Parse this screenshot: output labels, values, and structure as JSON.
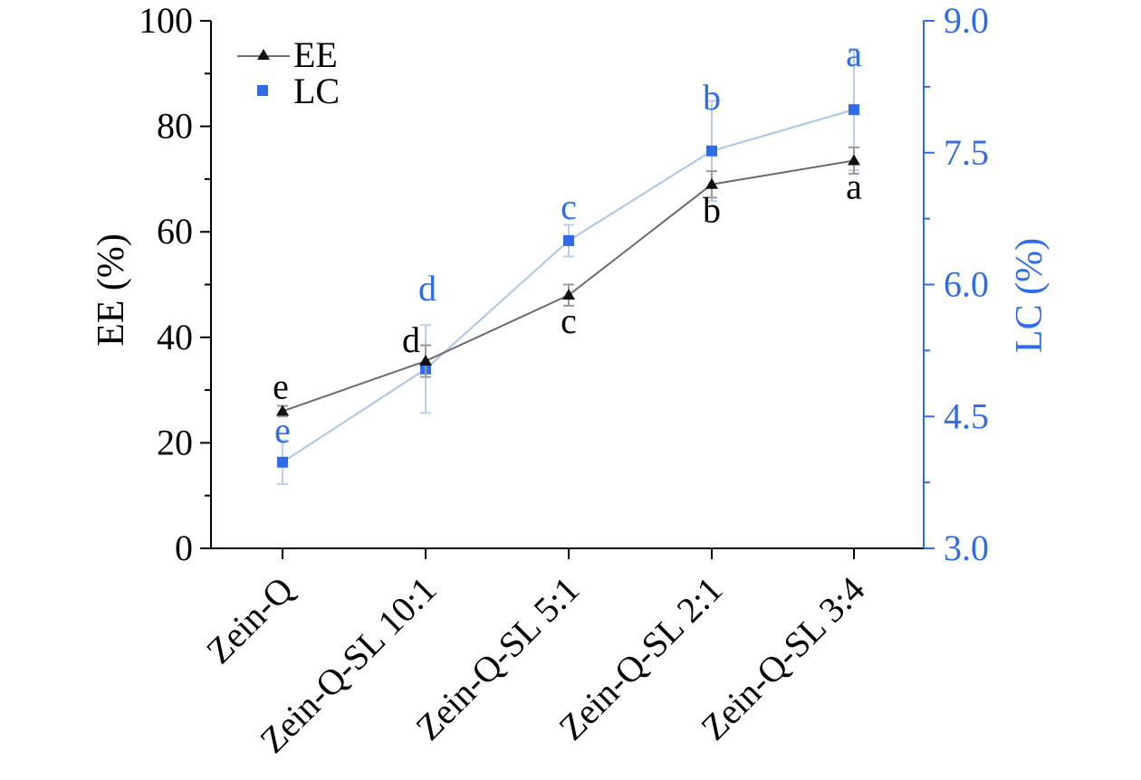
{
  "chart_data": {
    "type": "line",
    "categories": [
      "Zein-Q",
      "Zein-Q-SL 10:1",
      "Zein-Q-SL 5:1",
      "Zein-Q-SL 2:1",
      "Zein-Q-SL 3:4"
    ],
    "ylabel": "EE (%)",
    "ylabel_right": "LC (%)",
    "ylim": [
      0,
      100
    ],
    "ylim_right": [
      3.0,
      9.0
    ],
    "yticks": [
      "0",
      "20",
      "40",
      "60",
      "80",
      "100"
    ],
    "yticks_right": [
      "3.0",
      "4.5",
      "6.0",
      "7.5",
      "9.0"
    ],
    "legend_position": "top-left",
    "series": [
      {
        "name": "EE",
        "axis": "left",
        "color": "#6b6b6b",
        "marker_color": "#111111",
        "marker": "triangle",
        "values": [
          26,
          35.5,
          48,
          69,
          73.5
        ],
        "errors": [
          1,
          3,
          2,
          2.5,
          2.5
        ],
        "sig_labels": [
          "e",
          "d",
          "c",
          "b",
          "a"
        ]
      },
      {
        "name": "LC",
        "axis": "right",
        "color": "#aac4f0",
        "marker_color": "#2f6de8",
        "marker": "square",
        "values": [
          3.98,
          5.04,
          6.5,
          7.52,
          7.99
        ],
        "errors": [
          0.25,
          0.5,
          0.18,
          0.57,
          0.69
        ],
        "sig_labels": [
          "e",
          "d",
          "c",
          "b",
          "a"
        ]
      }
    ]
  },
  "colors": {
    "axis_left": "#000000",
    "axis_right": "#2f6de8",
    "label_dark": "#000000",
    "label_blue": "#2f6de8"
  }
}
